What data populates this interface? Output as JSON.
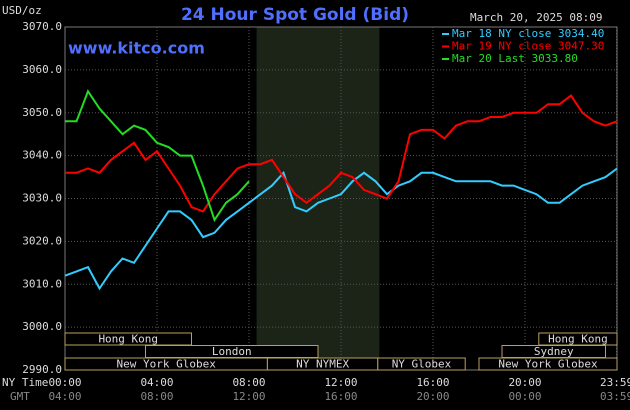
{
  "chart_data": {
    "type": "line",
    "title": "24 Hour Spot Gold (Bid)",
    "timestamp": "March 20, 2025 08:09",
    "watermark": "www.kitco.com",
    "y_label": "USD/oz",
    "x_row_labels": [
      "NY Time",
      "GMT"
    ],
    "xlim": [
      0,
      24
    ],
    "ylim": [
      2990,
      3070
    ],
    "yticks": [
      {
        "value": 2990,
        "label": "2990.0"
      },
      {
        "value": 3000,
        "label": "3000.0"
      },
      {
        "value": 3010,
        "label": "3010.0"
      },
      {
        "value": 3020,
        "label": "3020.0"
      },
      {
        "value": 3030,
        "label": "3030.0"
      },
      {
        "value": 3040,
        "label": "3040.0"
      },
      {
        "value": 3050,
        "label": "3050.0"
      },
      {
        "value": 3060,
        "label": "3060.0"
      },
      {
        "value": 3070,
        "label": "3070.0"
      }
    ],
    "xticks": [
      {
        "value": 0,
        "label": "00:00"
      },
      {
        "value": 4,
        "label": "04:00"
      },
      {
        "value": 8,
        "label": "08:00"
      },
      {
        "value": 12,
        "label": "12:00"
      },
      {
        "value": 16,
        "label": "16:00"
      },
      {
        "value": 20,
        "label": "20:00"
      },
      {
        "value": 23.98,
        "label": "23:59"
      }
    ],
    "gmt_ticks": [
      {
        "value": 0,
        "label": "04:00"
      },
      {
        "value": 4,
        "label": "08:00"
      },
      {
        "value": 8,
        "label": "12:00"
      },
      {
        "value": 12,
        "label": "16:00"
      },
      {
        "value": 16,
        "label": "20:00"
      },
      {
        "value": 20,
        "label": "00:00"
      },
      {
        "value": 23.98,
        "label": "03:59"
      }
    ],
    "grid": true,
    "shade": [
      8.33,
      13.67
    ],
    "sessions": [
      {
        "label": "Hong Kong",
        "row": 0,
        "start": 0,
        "end": 5.5
      },
      {
        "label": "Hong Kong",
        "row": 0,
        "start": 20.6,
        "end": 24
      },
      {
        "label": "London",
        "row": 1,
        "start": 3.5,
        "end": 11
      },
      {
        "label": "Sydney",
        "row": 1,
        "start": 19,
        "end": 23.5
      },
      {
        "label": "New York Globex",
        "row": 2,
        "start": 0,
        "end": 8.8
      },
      {
        "label": "NY NYMEX",
        "row": 2,
        "start": 8.8,
        "end": 13.6
      },
      {
        "label": "NY Globex",
        "row": 2,
        "start": 13.6,
        "end": 17.4
      },
      {
        "label": "New York Globex",
        "row": 2,
        "start": 18,
        "end": 24
      }
    ],
    "x": [
      0,
      0.5,
      1,
      1.5,
      2,
      2.5,
      3,
      3.5,
      4,
      4.5,
      5,
      5.5,
      6,
      6.5,
      7,
      7.5,
      8,
      8.5,
      9,
      9.5,
      10,
      10.5,
      11,
      11.5,
      12,
      12.5,
      13,
      13.5,
      14,
      14.5,
      15,
      15.5,
      16,
      16.5,
      17,
      17.5,
      18,
      18.5,
      19,
      19.5,
      20,
      20.5,
      21,
      21.5,
      22,
      22.5,
      23,
      23.5,
      24
    ],
    "series": [
      {
        "name": "Mar 18 NY close 3034.40",
        "color": "#33ccff",
        "values": [
          3012,
          3013,
          3014,
          3009,
          3013,
          3016,
          3015,
          3019,
          3023,
          3027,
          3027,
          3025,
          3021,
          3022,
          3025,
          3027,
          3029,
          3031,
          3033,
          3036,
          3028,
          3027,
          3029,
          3030,
          3031,
          3034,
          3036,
          3034,
          3031,
          3033,
          3034,
          3036,
          3036,
          3035,
          3034,
          3034,
          3034,
          3034,
          3033,
          3033,
          3032,
          3031,
          3029,
          3029,
          3031,
          3033,
          3034,
          3035,
          3037
        ]
      },
      {
        "name": "Mar 19 NY close 3047.30",
        "color": "#ff0000",
        "values": [
          3036,
          3036,
          3037,
          3036,
          3039,
          3041,
          3043,
          3039,
          3041,
          3037,
          3033,
          3028,
          3027,
          3031,
          3034,
          3037,
          3038,
          3038,
          3039,
          3035,
          3031,
          3029,
          3031,
          3033,
          3036,
          3035,
          3032,
          3031,
          3030,
          3034,
          3045,
          3046,
          3046,
          3044,
          3047,
          3048,
          3048,
          3049,
          3049,
          3050,
          3050,
          3050,
          3052,
          3052,
          3054,
          3050,
          3048,
          3047,
          3048
        ]
      },
      {
        "name": "Mar 20 Last 3033.80",
        "color": "#22dd22",
        "values": [
          3048,
          3048,
          3055,
          3051,
          3048,
          3045,
          3047,
          3046,
          3043,
          3042,
          3040,
          3040,
          3033,
          3025,
          3029,
          3031,
          3034,
          null,
          null,
          null,
          null,
          null,
          null,
          null,
          null,
          null,
          null,
          null,
          null,
          null,
          null,
          null,
          null,
          null,
          null,
          null,
          null,
          null,
          null,
          null,
          null,
          null,
          null,
          null,
          null,
          null,
          null,
          null,
          null
        ]
      }
    ]
  }
}
